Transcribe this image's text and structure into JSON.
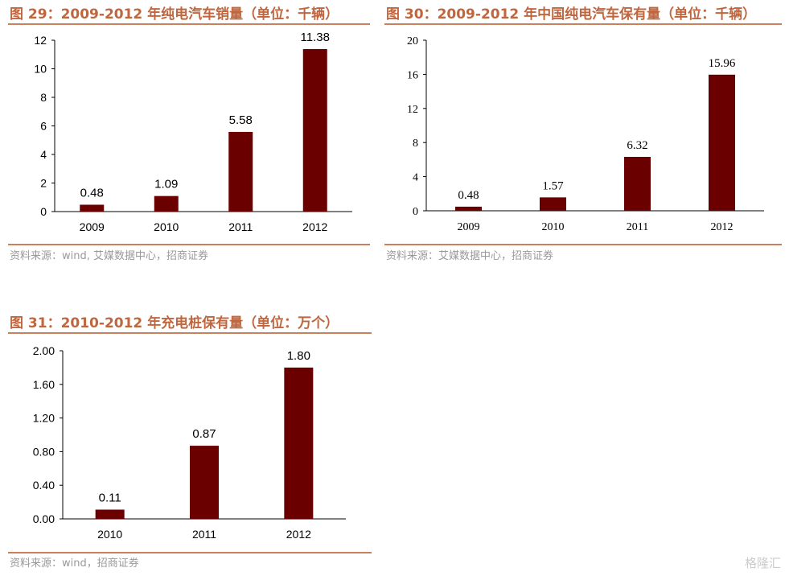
{
  "chart_data": [
    {
      "type": "bar",
      "title": "图 29：2009-2012 年纯电汽车销量（单位：千辆）",
      "categories": [
        "2009",
        "2010",
        "2011",
        "2012"
      ],
      "values": [
        0.48,
        1.09,
        5.58,
        11.38
      ],
      "data_labels": [
        "0.48",
        "1.09",
        "5.58",
        "11.38"
      ],
      "yticks": [
        "0",
        "2",
        "4",
        "6",
        "8",
        "10",
        "12"
      ],
      "ylim": [
        0,
        12
      ],
      "grid": false,
      "bar_color": "#6b0000",
      "source": "资料来源：wind, 艾媒数据中心，招商证券"
    },
    {
      "type": "bar",
      "title": "图 30：2009-2012 年中国纯电汽车保有量（单位：千辆）",
      "categories": [
        "2009",
        "2010",
        "2011",
        "2012"
      ],
      "values": [
        0.48,
        1.57,
        6.32,
        15.96
      ],
      "data_labels": [
        "0.48",
        "1.57",
        "6.32",
        "15.96"
      ],
      "yticks": [
        "0",
        "4",
        "8",
        "12",
        "16",
        "20"
      ],
      "ylim": [
        0,
        20
      ],
      "grid": false,
      "bar_color": "#6b0000",
      "source": "资料来源：艾媒数据中心，招商证券"
    },
    {
      "type": "bar",
      "title": "图 31：2010-2012 年充电桩保有量（单位：万个）",
      "categories": [
        "2010",
        "2011",
        "2012"
      ],
      "values": [
        0.11,
        0.87,
        1.8
      ],
      "data_labels": [
        "0.11",
        "0.87",
        "1.80"
      ],
      "yticks": [
        "0.00",
        "0.40",
        "0.80",
        "1.20",
        "1.60",
        "2.00"
      ],
      "ylim": [
        0,
        2
      ],
      "grid": false,
      "bar_color": "#6b0000",
      "source": "资料来源：wind，招商证券"
    }
  ],
  "watermark": "格隆汇",
  "colors": {
    "title": "#c0663e",
    "rule": "#c8805f",
    "bar": "#6b0000"
  }
}
